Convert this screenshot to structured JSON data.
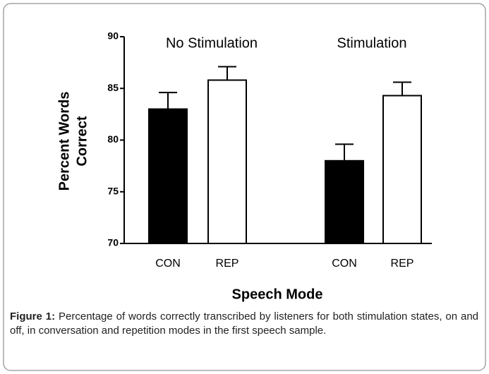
{
  "chart_data": {
    "type": "bar",
    "groups": [
      "No Stimulation",
      "Stimulation"
    ],
    "categories": [
      "CON",
      "REP",
      "CON",
      "REP"
    ],
    "category_group": [
      0,
      0,
      1,
      1
    ],
    "values": [
      83.0,
      85.8,
      78.0,
      84.3
    ],
    "errors": [
      1.6,
      1.3,
      1.6,
      1.3
    ],
    "colors": [
      "#000000",
      "#ffffff",
      "#000000",
      "#ffffff"
    ],
    "xlabel": "Speech Mode",
    "ylabel_lines": [
      "Percent Words",
      "Correct"
    ],
    "ylim": [
      70,
      90
    ],
    "yticks": [
      70,
      75,
      80,
      85,
      90
    ]
  },
  "caption": {
    "label": "Figure 1:",
    "text": "Percentage of words correctly transcribed by listeners for both stimulation states, on and off, in conversation and repetition modes in the first speech sample."
  }
}
